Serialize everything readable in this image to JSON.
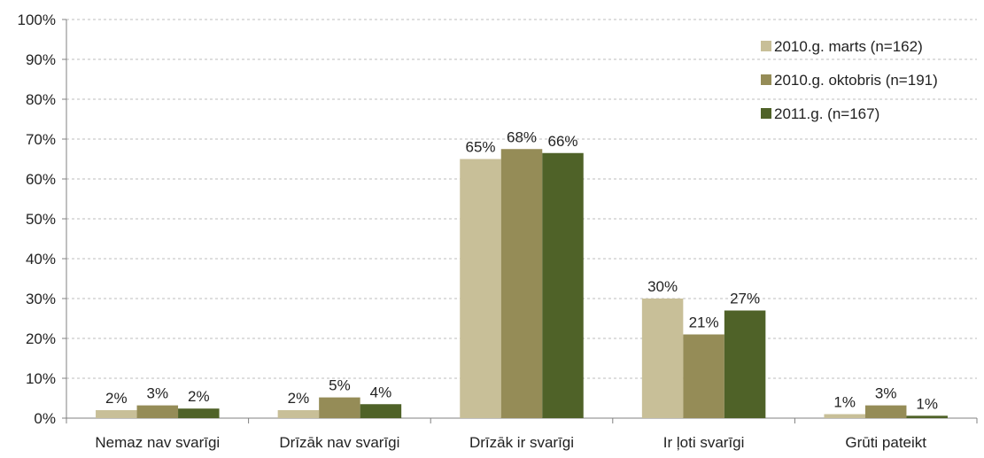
{
  "chart_data": {
    "type": "bar",
    "title": "",
    "xlabel": "",
    "ylabel": "",
    "categories": [
      "Nemaz nav svarīgi",
      "Drīzāk nav svarīgi",
      "Drīzāk ir svarīgi",
      "Ir ļoti svarīgi",
      "Grūti pateikt"
    ],
    "series": [
      {
        "name": "2010.g. marts (n=162)",
        "color": "#c8bf98",
        "values": [
          2,
          2,
          65,
          30,
          1
        ],
        "labels": [
          "2%",
          "2%",
          "65%",
          "30%",
          "1%"
        ]
      },
      {
        "name": "2010.g. oktobris (n=191)",
        "color": "#958c57",
        "values": [
          3,
          5,
          68,
          21,
          3
        ],
        "labels": [
          "3%",
          "5%",
          "68%",
          "21%",
          "3%"
        ]
      },
      {
        "name": "2011.g. (n=167)",
        "color": "#4f6228",
        "values": [
          2,
          4,
          66,
          27,
          1
        ],
        "labels": [
          "2%",
          "4%",
          "66%",
          "27%",
          "1%"
        ]
      }
    ],
    "bar_heights": [
      [
        2,
        2,
        65,
        30,
        1
      ],
      [
        3.2,
        5.2,
        67.5,
        21,
        3.2
      ],
      [
        2.4,
        3.5,
        66.5,
        27,
        0.6
      ]
    ],
    "ylim": [
      0,
      100
    ],
    "yticks": [
      0,
      10,
      20,
      30,
      40,
      50,
      60,
      70,
      80,
      90,
      100
    ],
    "ytick_labels": [
      "0%",
      "10%",
      "20%",
      "30%",
      "40%",
      "50%",
      "60%",
      "70%",
      "80%",
      "90%",
      "100%"
    ],
    "grid": true,
    "grid_style": "dashed",
    "legend_position": "top-right"
  }
}
